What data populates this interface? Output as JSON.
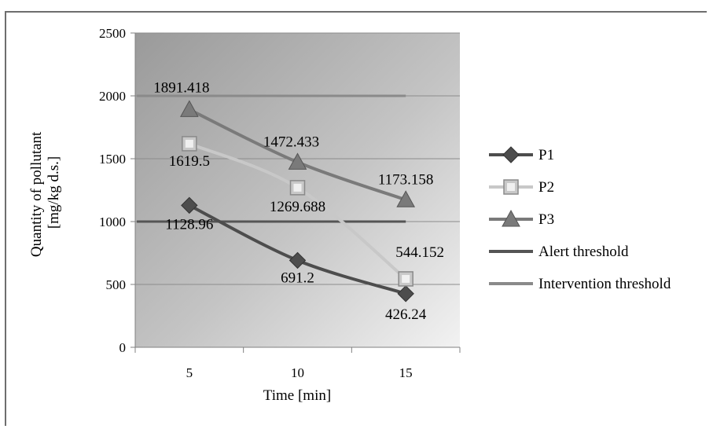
{
  "chart_data": {
    "type": "line",
    "title": "",
    "xlabel": "Time [min]",
    "ylabel": [
      "Quantity of pollutant",
      "[mg/kg d.s.]"
    ],
    "categories": [
      "5",
      "10",
      "15"
    ],
    "ylim": [
      0,
      2500
    ],
    "yticks": [
      "0",
      "500",
      "1000",
      "1500",
      "2000",
      "2500"
    ],
    "grid": true,
    "legend_position": "right",
    "series": [
      {
        "name": "P1",
        "values": [
          1128.96,
          691.2,
          426.24
        ],
        "labels": [
          "1128.96",
          "691.2",
          "426.24"
        ],
        "marker": "diamond",
        "color": "#4d4d4d"
      },
      {
        "name": "P2",
        "values": [
          1619.5,
          1269.688,
          544.152
        ],
        "labels": [
          "1619.5",
          "1269.688",
          "544.152"
        ],
        "marker": "square",
        "color": "#c8c8c8"
      },
      {
        "name": "P3",
        "values": [
          1891.418,
          1472.433,
          1173.158
        ],
        "labels": [
          "1891.418",
          "1472.433",
          "1173.158"
        ],
        "marker": "triangle",
        "color": "#7a7a7a"
      },
      {
        "name": "Alert threshold",
        "values": [
          1000,
          1000,
          1000
        ],
        "marker": "none",
        "color": "#555555"
      },
      {
        "name": "Intervention threshold",
        "values": [
          2000,
          2000,
          2000
        ],
        "marker": "none",
        "color": "#8a8a8a"
      }
    ]
  }
}
